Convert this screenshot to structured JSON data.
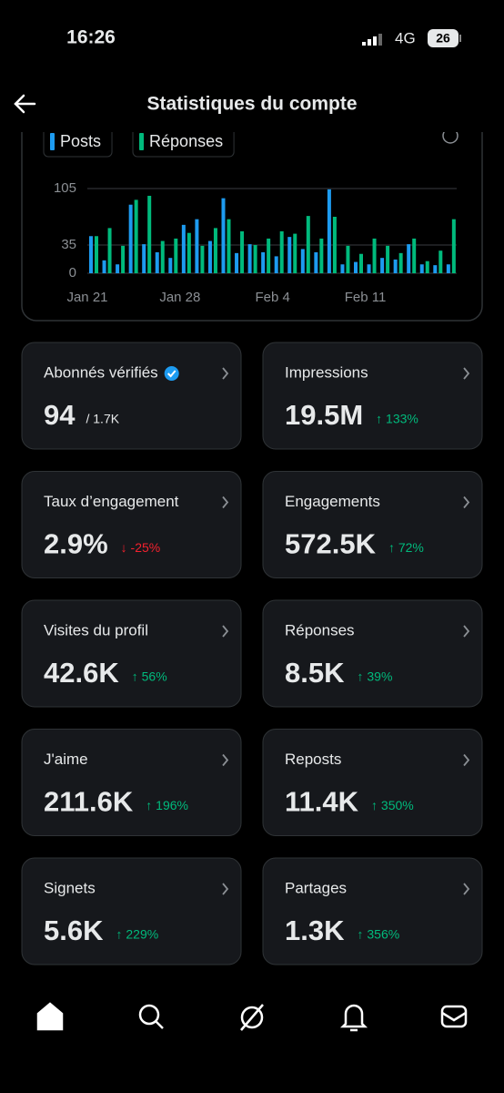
{
  "status_bar": {
    "time": "16:26",
    "network": "4G",
    "battery": "26"
  },
  "header": {
    "title": "Statistiques du compte"
  },
  "chart_data": {
    "type": "bar",
    "categories": [
      "Jan 21",
      null,
      null,
      null,
      null,
      null,
      null,
      "Jan 28",
      null,
      null,
      null,
      null,
      null,
      null,
      "Feb 4",
      null,
      null,
      null,
      null,
      null,
      null,
      "Feb 11",
      null,
      null,
      null,
      null,
      null,
      null
    ],
    "series": [
      {
        "name": "Posts",
        "color": "#1d9bf0",
        "values": [
          46,
          16,
          11,
          85,
          36,
          26,
          19,
          60,
          67,
          40,
          93,
          25,
          36,
          26,
          21,
          45,
          30,
          26,
          104,
          11,
          14,
          11,
          19,
          17,
          36,
          11,
          10,
          11
        ]
      },
      {
        "name": "Réponses",
        "color": "#00ba7c",
        "values": [
          46,
          56,
          34,
          91,
          96,
          40,
          43,
          50,
          34,
          56,
          67,
          52,
          35,
          43,
          52,
          49,
          71,
          43,
          70,
          34,
          24,
          43,
          34,
          25,
          43,
          15,
          28,
          67
        ]
      }
    ],
    "ylim": [
      0,
      105
    ],
    "yticks": [
      0,
      35,
      105
    ],
    "grid": true
  },
  "cards": [
    {
      "title": "Abonnés vérifiés",
      "value": "94",
      "note": "/ 1.7K",
      "trend": "neutral",
      "verified": true
    },
    {
      "title": "Impressions",
      "value": "19.5M",
      "note": "↑ 133%",
      "trend": "up"
    },
    {
      "title": "Taux d’engagement",
      "value": "2.9%",
      "note": "↓ -25%",
      "trend": "down"
    },
    {
      "title": "Engagements",
      "value": "572.5K",
      "note": "↑ 72%",
      "trend": "up"
    },
    {
      "title": "Visites du profil",
      "value": "42.6K",
      "note": "↑ 56%",
      "trend": "up"
    },
    {
      "title": "Réponses",
      "value": "8.5K",
      "note": "↑ 39%",
      "trend": "up"
    },
    {
      "title": "J'aime",
      "value": "211.6K",
      "note": "↑ 196%",
      "trend": "up"
    },
    {
      "title": "Reposts",
      "value": "11.4K",
      "note": "↑ 350%",
      "trend": "up"
    },
    {
      "title": "Signets",
      "value": "5.6K",
      "note": "↑ 229%",
      "trend": "up"
    },
    {
      "title": "Partages",
      "value": "1.3K",
      "note": "↑ 356%",
      "trend": "up"
    }
  ]
}
